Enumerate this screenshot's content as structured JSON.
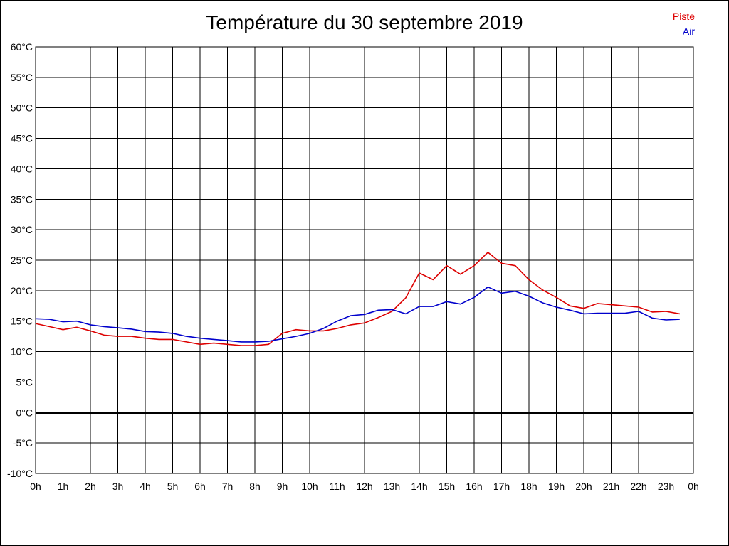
{
  "chart_data": {
    "type": "line",
    "title": "Température du 30 septembre 2019",
    "x": [
      0,
      0.5,
      1,
      1.5,
      2,
      2.5,
      3,
      3.5,
      4,
      4.5,
      5,
      5.5,
      6,
      6.5,
      7,
      7.5,
      8,
      8.5,
      9,
      9.5,
      10,
      10.5,
      11,
      11.5,
      12,
      12.5,
      13,
      13.5,
      14,
      14.5,
      15,
      15.5,
      16,
      16.5,
      17,
      17.5,
      18,
      18.5,
      19,
      19.5,
      20,
      20.5,
      21,
      21.5,
      22,
      22.5,
      23,
      23.5
    ],
    "xticks": [
      "0h",
      "1h",
      "2h",
      "3h",
      "4h",
      "5h",
      "6h",
      "7h",
      "8h",
      "9h",
      "10h",
      "11h",
      "12h",
      "13h",
      "14h",
      "15h",
      "16h",
      "17h",
      "18h",
      "19h",
      "20h",
      "21h",
      "22h",
      "23h",
      "0h"
    ],
    "xlim": [
      0,
      24
    ],
    "ylim": [
      -10,
      60
    ],
    "yticks": [
      "-10°C",
      "-5°C",
      "0°C",
      "5°C",
      "10°C",
      "15°C",
      "20°C",
      "25°C",
      "30°C",
      "35°C",
      "40°C",
      "45°C",
      "50°C",
      "55°C",
      "60°C"
    ],
    "grid": true,
    "legend_position": "top-right",
    "zero_line": true,
    "series": [
      {
        "name": "Piste",
        "color": "#dd0000",
        "values": [
          14.6,
          14.1,
          13.6,
          14.0,
          13.4,
          12.7,
          12.5,
          12.5,
          12.2,
          12.0,
          12.0,
          11.6,
          11.2,
          11.4,
          11.2,
          11.0,
          11.0,
          11.2,
          13.0,
          13.6,
          13.4,
          13.4,
          13.8,
          14.4,
          14.7,
          15.6,
          16.6,
          18.8,
          22.9,
          21.8,
          24.1,
          22.7,
          24.1,
          26.3,
          24.5,
          24.1,
          21.8,
          20.1,
          18.9,
          17.5,
          17.1,
          17.9,
          17.7,
          17.5,
          17.3,
          16.5,
          16.6,
          16.2
        ]
      },
      {
        "name": "Air",
        "color": "#0000cc",
        "values": [
          15.4,
          15.3,
          14.9,
          15.0,
          14.4,
          14.1,
          13.9,
          13.7,
          13.3,
          13.2,
          13.0,
          12.5,
          12.2,
          12.0,
          11.8,
          11.6,
          11.6,
          11.7,
          12.1,
          12.5,
          13.0,
          13.8,
          15.0,
          15.9,
          16.1,
          16.8,
          16.9,
          16.2,
          17.4,
          17.4,
          18.2,
          17.8,
          18.9,
          20.6,
          19.6,
          19.9,
          19.1,
          18.0,
          17.3,
          16.8,
          16.2,
          16.3,
          16.3,
          16.3,
          16.6,
          15.5,
          15.2,
          15.3
        ]
      }
    ]
  }
}
